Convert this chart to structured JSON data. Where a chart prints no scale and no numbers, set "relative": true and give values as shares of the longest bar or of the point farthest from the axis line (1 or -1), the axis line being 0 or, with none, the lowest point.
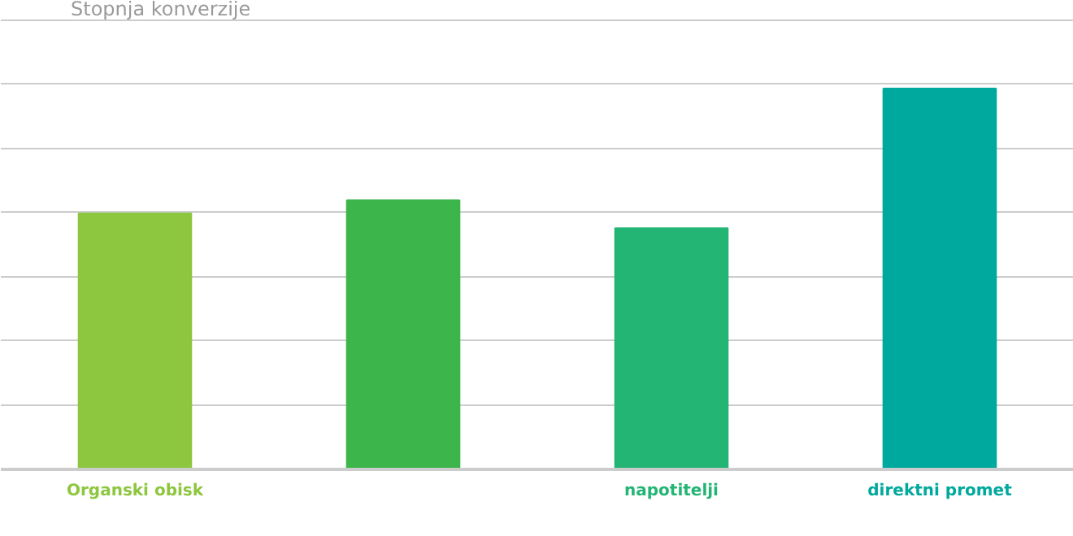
{
  "chart_data": {
    "type": "bar",
    "title": "Stopnja konverzije",
    "categories": [
      "Organski obisk",
      null,
      "napotitelji",
      "direktni promet"
    ],
    "values": [
      0.672,
      0.707,
      0.633,
      1
    ],
    "colors": [
      "#8dc63f",
      "#3cb54a",
      "#22b573",
      "#00a99d"
    ],
    "relative": true,
    "grid": "y"
  }
}
